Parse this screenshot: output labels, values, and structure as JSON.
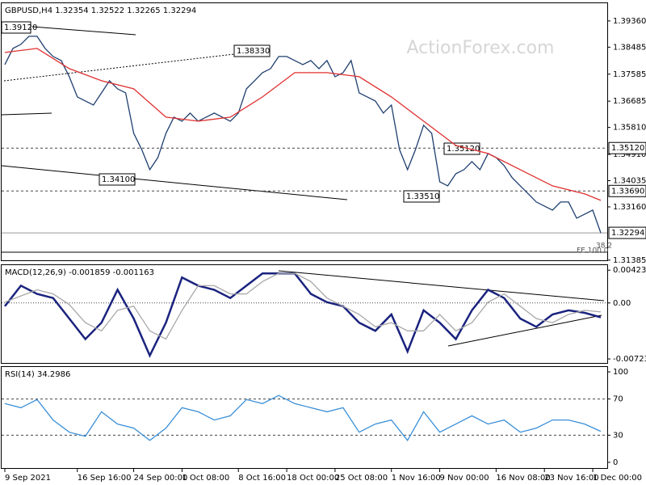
{
  "chart_data": [
    {
      "type": "line",
      "title": "GBPUSD,H4  1.32354 1.32522 1.32265 1.32294",
      "watermark": "ActionForex.com",
      "xlim": [
        -0.4,
        74.8
      ],
      "ylim": [
        1.3138,
        1.3995
      ],
      "yticks": [
        {
          "value": 1.3936,
          "label": "1.39360"
        },
        {
          "value": 1.38485,
          "label": "1.38485"
        },
        {
          "value": 1.37585,
          "label": "1.37585"
        },
        {
          "value": 1.36685,
          "label": "1.36685"
        },
        {
          "value": 1.3581,
          "label": "1.35810"
        },
        {
          "value": 1.3491,
          "label": "1.34910"
        },
        {
          "value": 1.34035,
          "label": "1.34035"
        },
        {
          "value": 1.3316,
          "label": "1.33160"
        },
        {
          "value": 1.31385,
          "label": "1.31385"
        }
      ],
      "levels": [
        {
          "value": 1.3512,
          "label": "1.35120",
          "style": "dashed"
        },
        {
          "value": 1.3369,
          "label": "1.33690",
          "style": "dashed"
        },
        {
          "value": 1.32294,
          "label": "1.32294",
          "style": "solid"
        }
      ],
      "annotations": [
        "1.39120",
        "1.38330",
        "1.34100",
        "1.33510",
        "1.35120",
        "38.2",
        "FE 100.0"
      ],
      "x": [
        0,
        1,
        2,
        3,
        4,
        5,
        6,
        7,
        8,
        9,
        10,
        11,
        12,
        13,
        14,
        15,
        16,
        17,
        18,
        19,
        20,
        21,
        22,
        23,
        24,
        25,
        26,
        27,
        28,
        29,
        30,
        31,
        32,
        33,
        34,
        35,
        36,
        37,
        38,
        39,
        40,
        41,
        42,
        43,
        44,
        45,
        46,
        47,
        48,
        49,
        50,
        51,
        52,
        53,
        54,
        55,
        56,
        57,
        58,
        59,
        60,
        61,
        62,
        63,
        64,
        65,
        66,
        67,
        68,
        69,
        70,
        71,
        72,
        73,
        74
      ],
      "series": [
        {
          "color": "#1f3f6f",
          "values": [
            1.37905,
            1.38444,
            1.38578,
            1.38848,
            1.38848,
            1.38444,
            1.38174,
            1.38039,
            1.375,
            1.36827,
            1.36692,
            1.36557,
            1.36961,
            1.37366,
            1.37096,
            1.36961,
            1.35614,
            1.35075,
            1.34401,
            1.34805,
            1.35614,
            1.36153,
            1.36018,
            1.36288,
            1.36018,
            1.36153,
            1.36288,
            1.36153,
            1.36018,
            1.36288,
            1.37096,
            1.37366,
            1.37635,
            1.3777,
            1.38174,
            1.38174,
            1.38039,
            1.37905,
            1.38039,
            1.3777,
            1.38039,
            1.375,
            1.37635,
            1.38039,
            1.36961,
            1.36827,
            1.36692,
            1.36288,
            1.36557,
            1.35075,
            1.34401,
            1.35075,
            1.35883,
            1.35614,
            1.33997,
            1.33862,
            1.34266,
            1.34401,
            1.34671,
            1.34401,
            1.3494,
            1.34805,
            1.34536,
            1.34132,
            1.33862,
            1.33593,
            1.33323,
            1.33188,
            1.33054,
            1.33323,
            1.33323,
            1.32784,
            1.32919,
            1.33054,
            1.32294
          ]
        },
        {
          "color": "#e03030",
          "x": [
            0,
            4,
            8,
            12,
            16,
            20,
            24,
            28,
            32,
            36,
            40,
            44,
            48,
            52,
            56,
            60,
            64,
            68,
            72,
            74
          ],
          "values": [
            1.38309,
            1.38444,
            1.3777,
            1.37366,
            1.37096,
            1.36153,
            1.36018,
            1.36153,
            1.36827,
            1.37635,
            1.37635,
            1.375,
            1.36827,
            1.36018,
            1.3521,
            1.3494,
            1.34401,
            1.33862,
            1.33593,
            1.33377
          ]
        }
      ]
    },
    {
      "type": "line",
      "title": "MACD(12,26,9) -0.001859 -0.001163",
      "xlim": [
        -0.4,
        74.8
      ],
      "ylim": [
        -0.00785,
        0.00488
      ],
      "yticks": [
        0.004231,
        {
          "value": 0,
          "label": "0.00"
        },
        -0.00723
      ],
      "levels": [
        {
          "value": 0,
          "style": "dotted"
        }
      ],
      "x": [
        0,
        2,
        4,
        6,
        8,
        10,
        12,
        14,
        16,
        18,
        20,
        22,
        24,
        26,
        28,
        30,
        32,
        34,
        36,
        38,
        40,
        42,
        44,
        46,
        48,
        50,
        52,
        54,
        56,
        58,
        60,
        62,
        64,
        66,
        68,
        70,
        72,
        74
      ],
      "series": [
        {
          "color": "#1a237e",
          "values": [
            -0.000424,
            0.002229,
            0.001167,
            0.000637,
            -0.002016,
            -0.004669,
            -0.002547,
            0.001698,
            -0.002016,
            -0.006792,
            -0.002547,
            0.00329,
            0.002229,
            0.001698,
            0.000637,
            0.002229,
            0.00382,
            0.00382,
            0.00382,
            0.001167,
            0.000106,
            -0.000424,
            -0.002547,
            -0.003608,
            -0.001486,
            -0.006261,
            -0.000955,
            -0.002547,
            -0.004669,
            -0.000955,
            0.001698,
            0.000637,
            -0.002016,
            -0.003078,
            -0.001486,
            -0.000955,
            -0.001273,
            -0.001859
          ]
        },
        {
          "color": "#a8a8a8",
          "values": [
            0.0001,
            0.000902,
            0.001698,
            0.001167,
            -0.000212,
            -0.002547,
            -0.003608,
            -0.000955,
            -0.000424,
            -0.003608,
            -0.004669,
            -0.000955,
            0.002229,
            0.002229,
            0.001167,
            0.001167,
            0.002759,
            0.00382,
            0.00382,
            0.002759,
            0.000637,
            -0.000424,
            -0.001486,
            -0.003078,
            -0.002547,
            -0.003608,
            -0.003608,
            -0.001486,
            -0.003608,
            -0.002547,
            0.000106,
            0.001167,
            -0.000424,
            -0.002016,
            -0.002547,
            -0.001486,
            -0.000955,
            -0.001163
          ]
        }
      ]
    },
    {
      "type": "line",
      "title": "RSI(14) 34.2986",
      "xlim": [
        -0.4,
        74.8
      ],
      "ylim": [
        -7.2,
        105.4
      ],
      "yticks": [
        100,
        70,
        30,
        0
      ],
      "levels": [
        {
          "value": 70,
          "style": "dashed"
        },
        {
          "value": 30,
          "style": "dashed"
        }
      ],
      "x": [
        0,
        2,
        4,
        6,
        8,
        10,
        12,
        14,
        16,
        18,
        20,
        22,
        24,
        26,
        28,
        30,
        32,
        34,
        36,
        38,
        40,
        42,
        44,
        46,
        48,
        50,
        52,
        54,
        56,
        58,
        60,
        62,
        64,
        66,
        68,
        70,
        72,
        74
      ],
      "xticks": [
        {
          "value": 0,
          "label": "9 Sep 2021"
        },
        {
          "value": 9,
          "label": "16 Sep 16:00"
        },
        {
          "value": 16,
          "label": "24 Sep 00:00"
        },
        {
          "value": 22,
          "label": "1 Oct 08:00"
        },
        {
          "value": 29,
          "label": "8 Oct 16:00"
        },
        {
          "value": 35,
          "label": "18 Oct 00:00"
        },
        {
          "value": 41,
          "label": "25 Oct 08:00"
        },
        {
          "value": 48,
          "label": "1 Nov 16:00"
        },
        {
          "value": 54,
          "label": "9 Nov 00:00"
        },
        {
          "value": 61,
          "label": "16 Nov 08:00"
        },
        {
          "value": 67,
          "label": "23 Nov 16:00"
        },
        {
          "value": 73,
          "label": "1 Dec 00:00"
        }
      ],
      "series": [
        {
          "color": "#3a8fd8",
          "values": [
            64.9,
            60.4,
            69.4,
            46.8,
            33.3,
            28.8,
            55.9,
            42.3,
            37.8,
            24.3,
            37.8,
            60.4,
            55.9,
            46.8,
            51.4,
            69.4,
            64.9,
            73.9,
            64.9,
            60.4,
            55.9,
            60.4,
            33.3,
            42.3,
            46.8,
            24.3,
            55.9,
            33.3,
            42.3,
            51.4,
            42.3,
            46.8,
            33.3,
            37.8,
            46.8,
            46.8,
            42.3,
            34.2986
          ]
        }
      ]
    }
  ]
}
